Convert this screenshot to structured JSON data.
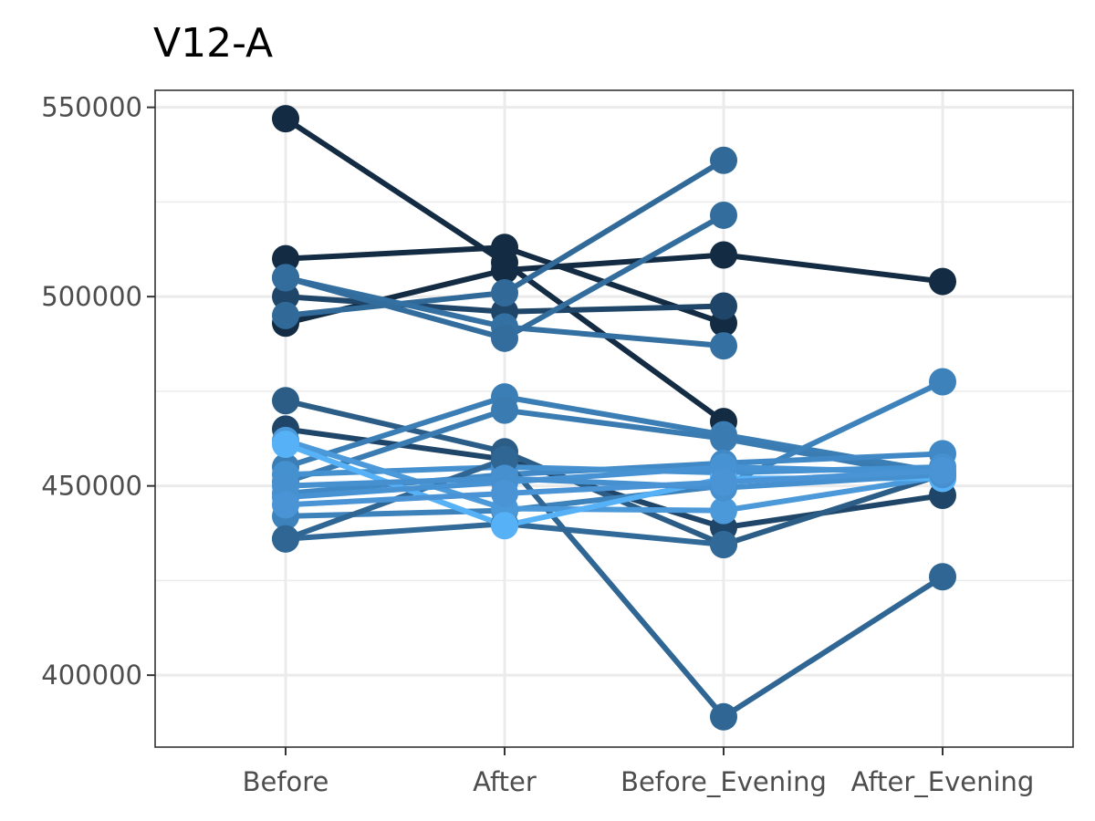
{
  "chart_data": {
    "type": "line",
    "title": "V12-A",
    "xlabel": "",
    "ylabel": "",
    "categories": [
      "Before",
      "After",
      "Before_Evening",
      "After_Evening"
    ],
    "ylim": [
      381000,
      554500
    ],
    "yticks": [
      400000,
      450000,
      500000,
      550000
    ],
    "ytick_labels": [
      "400000",
      "450000",
      "500000",
      "550000"
    ],
    "grid": true,
    "legend": "none",
    "series": [
      {
        "values": [
          547000,
          509000,
          467000,
          null
        ],
        "color": "#132b43"
      },
      {
        "values": [
          510000,
          513000,
          493000,
          null
        ],
        "color": "#132b43"
      },
      {
        "values": [
          493000,
          507000,
          511000,
          504000
        ],
        "color": "#132b43"
      },
      {
        "values": [
          500000,
          496000,
          497500,
          null
        ],
        "color": "#1f4568"
      },
      {
        "values": [
          495000,
          501000,
          536000,
          null
        ],
        "color": "#316a99"
      },
      {
        "values": [
          505000,
          492000,
          487000,
          null
        ],
        "color": "#3470a1"
      },
      {
        "values": [
          505000,
          489000,
          521500,
          null
        ],
        "color": "#336d9d"
      },
      {
        "values": [
          465000,
          457000,
          439000,
          447500
        ],
        "color": "#1f4568"
      },
      {
        "values": [
          472500,
          459000,
          434500,
          453000
        ],
        "color": "#2b5d87"
      },
      {
        "values": [
          455000,
          473500,
          463500,
          453500
        ],
        "color": "#3b7eb5"
      },
      {
        "values": [
          451000,
          470000,
          462500,
          452000
        ],
        "color": "#3a7cb2"
      },
      {
        "values": [
          442000,
          443500,
          450000,
          477500
        ],
        "color": "#3d82bb"
      },
      {
        "values": [
          448000,
          453000,
          456000,
          458500
        ],
        "color": "#4189c6"
      },
      {
        "values": [
          453000,
          455000,
          453500,
          455000
        ],
        "color": "#4590cf"
      },
      {
        "values": [
          436000,
          440000,
          434500,
          null
        ],
        "color": "#316a99"
      },
      {
        "values": [
          436000,
          457000,
          389000,
          426000
        ],
        "color": "#2f6694"
      },
      {
        "values": [
          462000,
          444000,
          443500,
          452500
        ],
        "color": "#4c99da"
      },
      {
        "values": [
          461000,
          439500,
          452000,
          452000
        ],
        "color": "#56b1f7"
      },
      {
        "values": [
          447000,
          451000,
          455000,
          453500
        ],
        "color": "#4792d2"
      },
      {
        "values": [
          450000,
          452000,
          449500,
          453000
        ],
        "color": "#4690d0"
      },
      {
        "values": [
          445000,
          448000,
          451000,
          454000
        ],
        "color": "#4a94d6"
      }
    ]
  }
}
